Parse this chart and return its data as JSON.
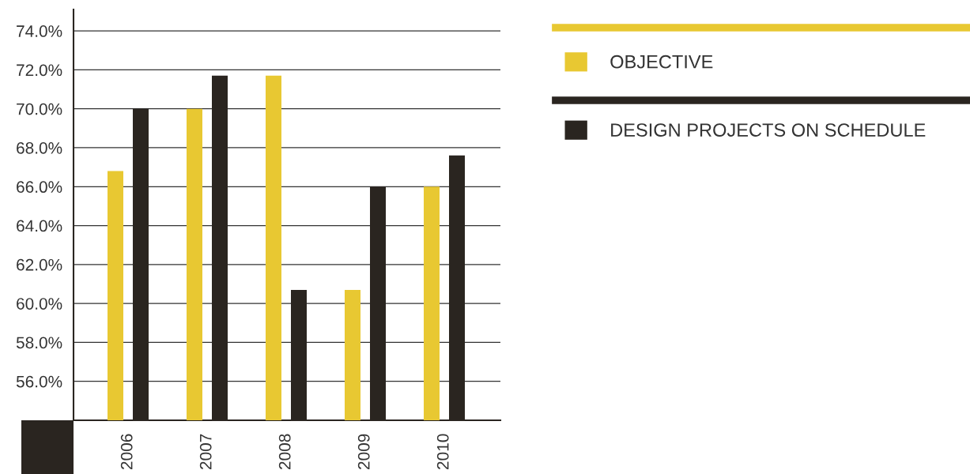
{
  "chart_data": {
    "type": "bar",
    "categories": [
      "2006",
      "2007",
      "2008",
      "2009",
      "2010"
    ],
    "series": [
      {
        "name": "OBJECTIVE",
        "color": "#e8c832",
        "values": [
          66.8,
          70.0,
          71.7,
          60.7,
          66.0
        ]
      },
      {
        "name": "DESIGN PROJECTS ON SCHEDULE",
        "color": "#2a2520",
        "values": [
          70.0,
          71.7,
          60.7,
          66.0,
          67.6
        ]
      }
    ],
    "ylim": [
      54,
      75.1
    ],
    "yticks": [
      {
        "value": 56,
        "label": "56.0%"
      },
      {
        "value": 58,
        "label": "58.0%"
      },
      {
        "value": 60,
        "label": "60.0%"
      },
      {
        "value": 62,
        "label": "62.0%"
      },
      {
        "value": 64,
        "label": "64.0%"
      },
      {
        "value": 66,
        "label": "66.0%"
      },
      {
        "value": 68,
        "label": "68.0%"
      },
      {
        "value": 70,
        "label": "70.0%"
      },
      {
        "value": 72,
        "label": "72.0%"
      },
      {
        "value": 74,
        "label": "74.0%"
      }
    ],
    "grid": "y",
    "legend": "right"
  }
}
